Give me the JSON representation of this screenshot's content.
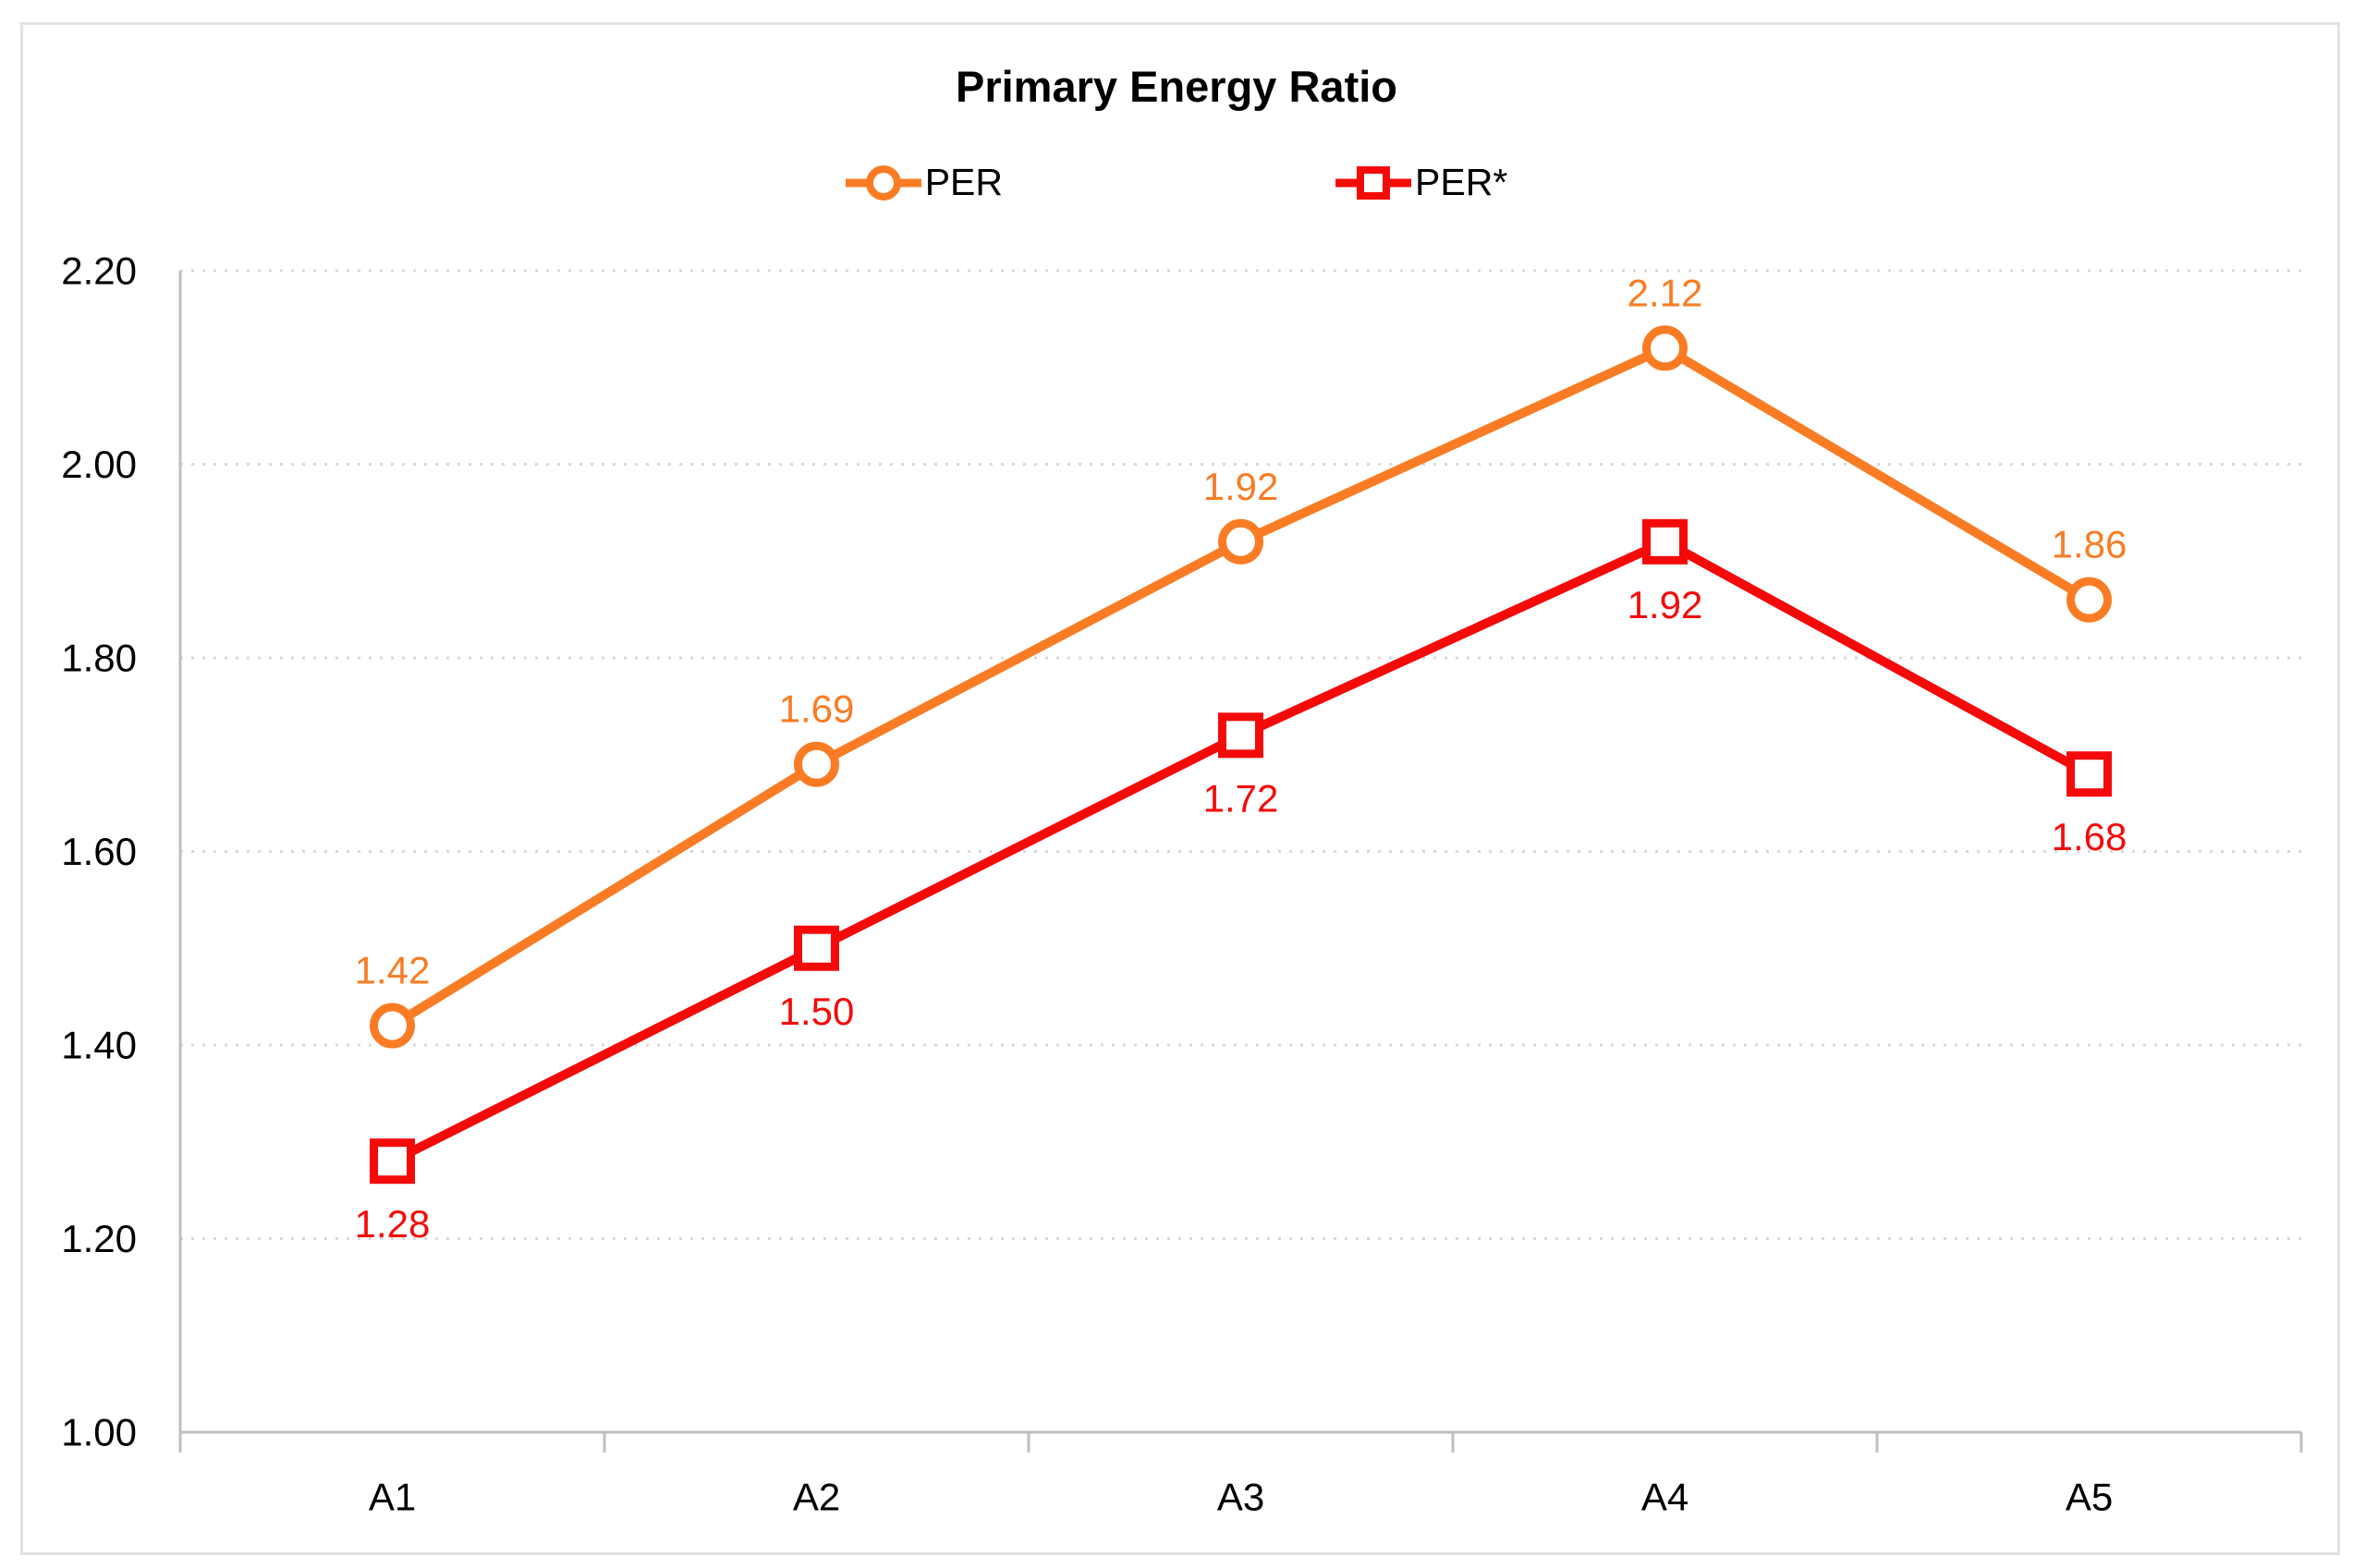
{
  "figure": {
    "title": "Primary Energy Ratio"
  },
  "chart_data": {
    "type": "line",
    "title": "Primary Energy Ratio",
    "categories": [
      "A1",
      "A2",
      "A3",
      "A4",
      "A5"
    ],
    "series": [
      {
        "name": "PER",
        "marker": "circle",
        "color": "#F97C24",
        "values": [
          1.42,
          1.69,
          1.92,
          2.12,
          1.86
        ],
        "data_labels": [
          "1.42",
          "1.69",
          "1.92",
          "2.12",
          "1.86"
        ],
        "label_position": "above"
      },
      {
        "name": "PER*",
        "marker": "square",
        "color": "#F50A0A",
        "values": [
          1.28,
          1.5,
          1.72,
          1.92,
          1.68
        ],
        "data_labels": [
          "1.28",
          "1.50",
          "1.72",
          "1.92",
          "1.68"
        ],
        "label_position": "below"
      }
    ],
    "ylim": [
      1.0,
      2.2
    ],
    "ytick_step": 0.2,
    "ytick_labels": [
      "1.00",
      "1.20",
      "1.40",
      "1.60",
      "1.80",
      "2.00",
      "2.20"
    ],
    "xlabel": "",
    "ylabel": "",
    "grid": "horizontal-dotted",
    "legend_position": "top-center"
  },
  "colors": {
    "axis": "#BFBFBF",
    "gridline": "#D9D9D9",
    "text": "#000000",
    "frame": "#E2E2E2",
    "background": "#FFFFFF"
  }
}
